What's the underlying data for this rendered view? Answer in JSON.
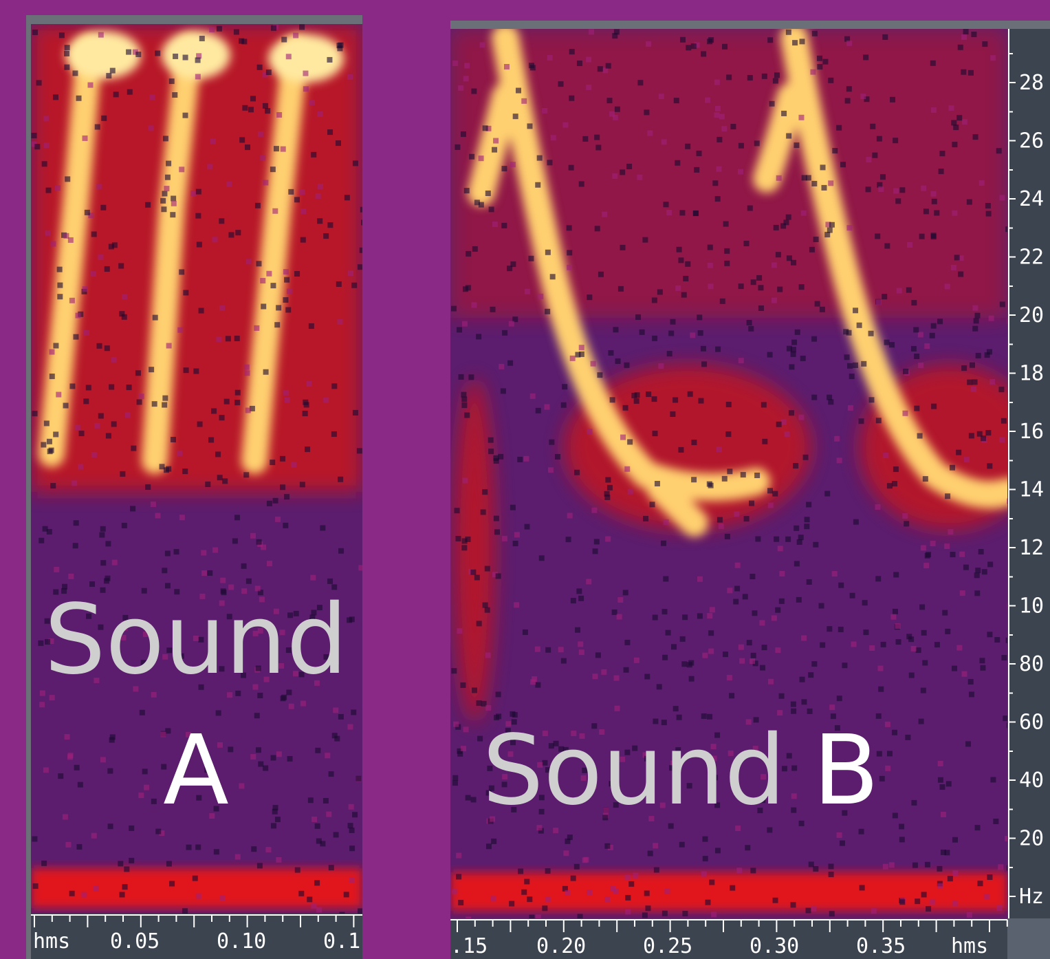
{
  "panel_a": {
    "label_line1": "Sound",
    "label_line2": "A",
    "time_axis": [
      "hms",
      "0.05",
      "0.10",
      "0.1"
    ]
  },
  "panel_b": {
    "label_word": "Sound",
    "label_letter": "B",
    "time_axis": [
      ".15",
      "0.20",
      "0.25",
      "0.30",
      "0.35",
      "hms"
    ],
    "freq_axis": [
      "28",
      "26",
      "24",
      "22",
      "20",
      "18",
      "16",
      "14",
      "12",
      "10",
      "80",
      "60",
      "40",
      "20",
      "Hz"
    ]
  }
}
